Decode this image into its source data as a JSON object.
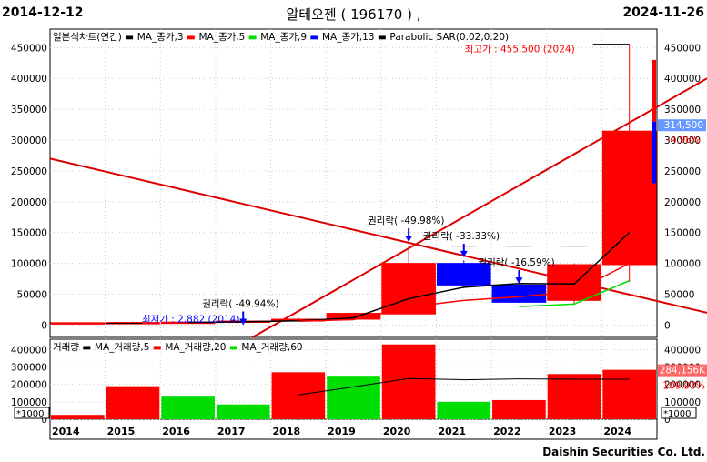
{
  "header": {
    "start_date": "2014-12-12",
    "end_date": "2024-11-26",
    "title": "알테오젠 ( 196170 ) ,"
  },
  "footer": {
    "company": "Daishin Securities Co. Ltd."
  },
  "legend_price": {
    "chart_name": "일본식차트(연간)",
    "items": [
      {
        "label": "MA_종가,3",
        "color": "#000000"
      },
      {
        "label": "MA_종가,5",
        "color": "#ff0000"
      },
      {
        "label": "MA_종가,9",
        "color": "#00dd00"
      },
      {
        "label": "MA_종가,13",
        "color": "#0000ff"
      },
      {
        "label": "Parabolic SAR(0.02,0.20)",
        "color": "#000000"
      }
    ]
  },
  "legend_volume": {
    "chart_name": "거래량",
    "items": [
      {
        "label": "MA_거래량,5",
        "color": "#000000"
      },
      {
        "label": "MA_거래량,20",
        "color": "#ff0000"
      },
      {
        "label": "MA_거래량,60",
        "color": "#00dd00"
      }
    ]
  },
  "annotations": {
    "max_label": "최고가 : 455,500 (2024)",
    "min_label": "최저가 : 2,882 (2014)",
    "rights": [
      {
        "label": "권리락( -49.94%)",
        "year": "2017"
      },
      {
        "label": "권리락( -49.98%)",
        "year": "2020"
      },
      {
        "label": "권리락( -33.33%)",
        "year": "2021"
      },
      {
        "label": "권리락( -16.59%)",
        "year": "2022"
      }
    ],
    "last_price": "314,500",
    "change_pct": "-4.98%",
    "last_volume": "284,156K",
    "volume_change_pct": "109.93%",
    "volume_unit": "*1000"
  },
  "colors": {
    "up": "#ff0000",
    "down": "#0000ff",
    "vol_up": "#ff0000",
    "vol_down": "#00dd00",
    "trend": "#dd0000",
    "label_bg": "#6699ff",
    "vol_label_bg": "#ff6666"
  },
  "chart_data": [
    {
      "type": "candlestick",
      "categories": [
        "2014",
        "2015",
        "2016",
        "2017",
        "2018",
        "2019",
        "2020",
        "2021",
        "2022",
        "2023",
        "2024"
      ],
      "ohlc": [
        {
          "x": "2014",
          "open": 3000,
          "high": 4200,
          "low": 2882,
          "close": 3800
        },
        {
          "x": "2015",
          "open": 3800,
          "high": 5500,
          "low": 3000,
          "close": 4200
        },
        {
          "x": "2016",
          "open": 4200,
          "high": 5200,
          "low": 3500,
          "close": 4800
        },
        {
          "x": "2017",
          "open": 4800,
          "high": 7000,
          "low": 4200,
          "close": 6500
        },
        {
          "x": "2018",
          "open": 6500,
          "high": 12000,
          "low": 5500,
          "close": 9500
        },
        {
          "x": "2019",
          "open": 9500,
          "high": 20000,
          "low": 8500,
          "close": 19000
        },
        {
          "x": "2020",
          "open": 18000,
          "high": 128000,
          "low": 17000,
          "close": 100000
        },
        {
          "x": "2021",
          "open": 100000,
          "high": 105000,
          "low": 60000,
          "close": 65000
        },
        {
          "x": "2022",
          "open": 65000,
          "high": 66000,
          "low": 36000,
          "close": 37000
        },
        {
          "x": "2023",
          "open": 40000,
          "high": 100000,
          "low": 33000,
          "close": 98000
        },
        {
          "x": "2024",
          "open": 98000,
          "high": 455500,
          "low": 70000,
          "close": 314500
        }
      ],
      "ma_lines": [
        {
          "name": "MA_종가,3",
          "color": "#000000",
          "values": [
            null,
            null,
            4200,
            5200,
            6900,
            11700,
            42800,
            61300,
            67300,
            66700,
            150000
          ]
        },
        {
          "name": "MA_종가,5",
          "color": "#ff0000",
          "values": [
            null,
            null,
            null,
            null,
            6200,
            8800,
            29000,
            40000,
            46000,
            54000,
            100000
          ]
        },
        {
          "name": "MA_종가,9",
          "color": "#00dd00",
          "values": [
            null,
            null,
            null,
            null,
            null,
            null,
            null,
            null,
            30000,
            34000,
            72000
          ]
        }
      ],
      "ylim": [
        -20000,
        480000
      ],
      "yticks": [
        0,
        50000,
        100000,
        150000,
        200000,
        250000,
        300000,
        350000,
        400000,
        450000
      ],
      "yticklabels": [
        "0",
        "50000",
        "100000",
        "150000",
        "200000",
        "250000",
        "300000",
        "350000",
        "400000",
        "450000"
      ]
    },
    {
      "type": "bar",
      "categories": [
        "2014",
        "2015",
        "2016",
        "2017",
        "2018",
        "2019",
        "2020",
        "2021",
        "2022",
        "2023",
        "2024"
      ],
      "values": [
        25000,
        190000,
        135000,
        85000,
        270000,
        250000,
        430000,
        100000,
        110000,
        260000,
        284156
      ],
      "bar_up": [
        true,
        true,
        false,
        false,
        true,
        false,
        true,
        false,
        true,
        true,
        true
      ],
      "ma": {
        "name": "MA_거래량,5",
        "values": [
          null,
          null,
          null,
          null,
          140000,
          186000,
          234000,
          227000,
          232000,
          230000,
          230000
        ]
      },
      "ylim": [
        0,
        460000
      ],
      "yticks": [
        0,
        100000,
        200000,
        300000,
        400000
      ],
      "yticklabels": [
        "0",
        "100000",
        "200000",
        "300000",
        "400000"
      ],
      "xticklabels": [
        "2014",
        "2015",
        "2016",
        "2017",
        "2018",
        "2019",
        "2020",
        "2021",
        "2022",
        "2023",
        "2024"
      ]
    }
  ]
}
